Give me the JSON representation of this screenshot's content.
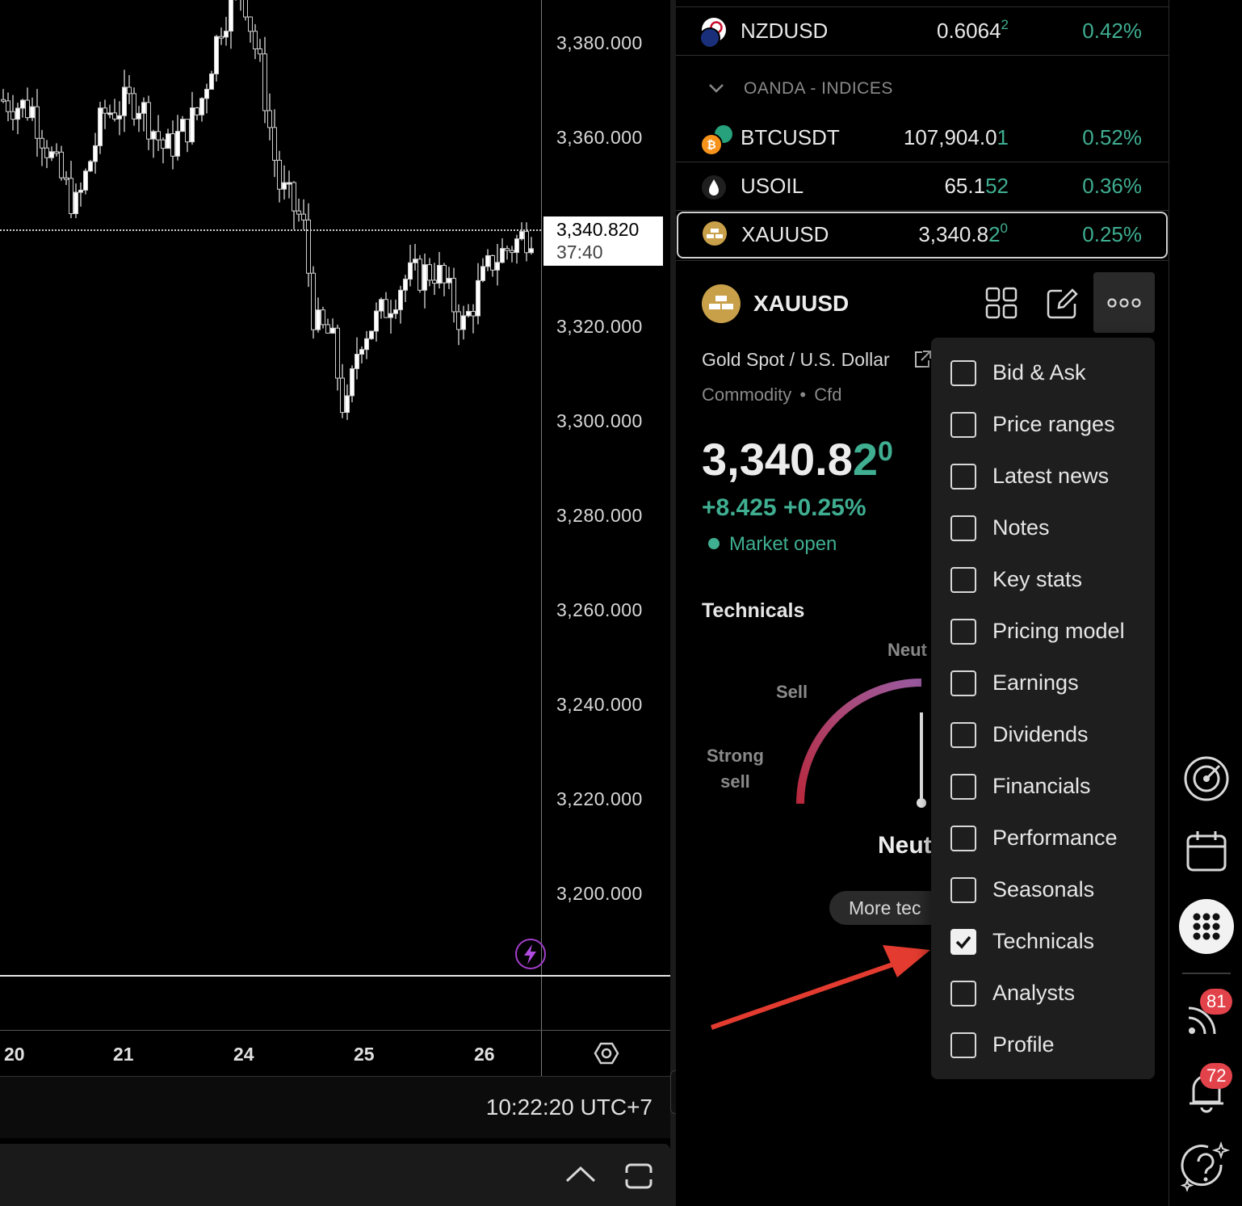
{
  "chart": {
    "y_ticks": [
      "3,380.000",
      "3,360.000",
      "3,340.820",
      "3,320.000",
      "3,300.000",
      "3,280.000",
      "3,260.000",
      "3,240.000",
      "3,220.000",
      "3,200.000"
    ],
    "price_label": "3,340.820",
    "countdown": "37:40",
    "x_ticks": [
      "20",
      "21",
      "24",
      "25",
      "26"
    ],
    "clock": "10:22:20 UTC+7"
  },
  "watchlist": {
    "rows_top": [
      {
        "symbol": "NZDUSD",
        "last_main": "0.6064",
        "last_sup": "2",
        "change": "0.42%"
      }
    ],
    "section_label": "OANDA - INDICES",
    "rows": [
      {
        "symbol": "BTCUSDT",
        "last_main": "107,904.0",
        "last_green": "1",
        "last_sup": "",
        "change": "0.52%"
      },
      {
        "symbol": "USOIL",
        "last_main": "65.1",
        "last_green": "52",
        "last_sup": "",
        "change": "0.36%"
      },
      {
        "symbol": "XAUUSD",
        "last_main": "3,340.8",
        "last_green": "2",
        "last_sup": "0",
        "change": "0.25%"
      }
    ]
  },
  "details": {
    "symbol": "XAUUSD",
    "description": "Gold Spot / U.S. Dollar",
    "type_1": "Commodity",
    "type_sep": "•",
    "type_2": "Cfd",
    "price_main": "3,340.8",
    "price_green": "2",
    "price_sup": "0",
    "change_abs": "+8.425",
    "change_pct": "+0.25%",
    "market_status": "Market open",
    "technicals_title": "Technicals",
    "gauge_labels": {
      "strong_sell_1": "Strong",
      "strong_sell_2": "sell",
      "sell": "Sell",
      "neutral_top": "Neut"
    },
    "gauge_result": "Neut",
    "more_button": "More tec"
  },
  "menu": {
    "items": [
      {
        "label": "Bid & Ask",
        "checked": false
      },
      {
        "label": "Price ranges",
        "checked": false
      },
      {
        "label": "Latest news",
        "checked": false
      },
      {
        "label": "Notes",
        "checked": false
      },
      {
        "label": "Key stats",
        "checked": false
      },
      {
        "label": "Pricing model",
        "checked": false
      },
      {
        "label": "Earnings",
        "checked": false
      },
      {
        "label": "Dividends",
        "checked": false
      },
      {
        "label": "Financials",
        "checked": false
      },
      {
        "label": "Performance",
        "checked": false
      },
      {
        "label": "Seasonals",
        "checked": false
      },
      {
        "label": "Technicals",
        "checked": true
      },
      {
        "label": "Analysts",
        "checked": false
      },
      {
        "label": "Profile",
        "checked": false
      }
    ]
  },
  "rail": {
    "feed_badge": "81",
    "alerts_badge": "72"
  },
  "colors": {
    "up": "#3fae91",
    "annotation_arrow": "#e33b2f",
    "badge": "#e2424a"
  }
}
